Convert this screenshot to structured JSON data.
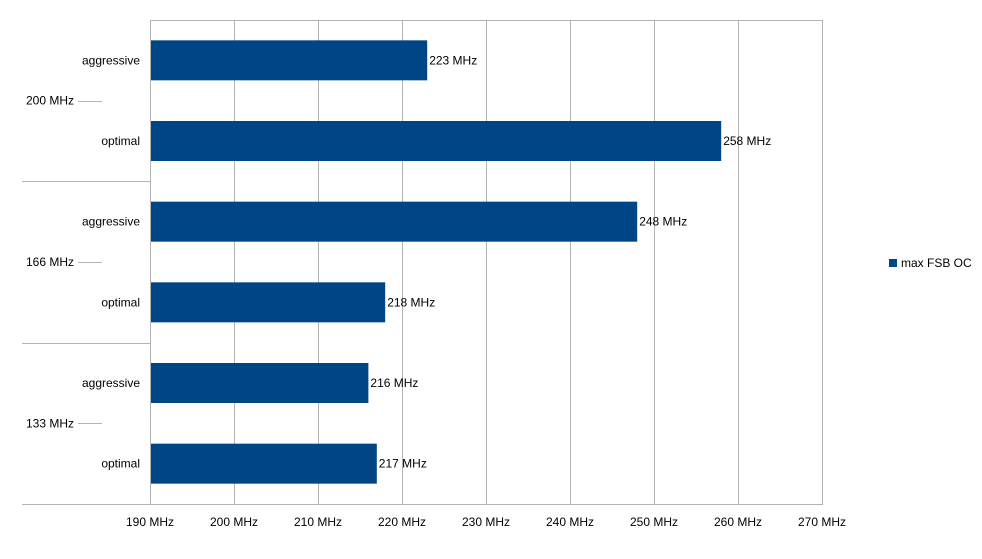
{
  "chart_data": {
    "type": "bar",
    "orientation": "horizontal",
    "groups": [
      {
        "label": "200 MHz",
        "items": [
          {
            "label": "aggressive",
            "value": 223,
            "value_label": "223 MHz"
          },
          {
            "label": "optimal",
            "value": 258,
            "value_label": "258 MHz"
          }
        ]
      },
      {
        "label": "166 MHz",
        "items": [
          {
            "label": "aggressive",
            "value": 248,
            "value_label": "248 MHz"
          },
          {
            "label": "optimal",
            "value": 218,
            "value_label": "218 MHz"
          }
        ]
      },
      {
        "label": "133 MHz",
        "items": [
          {
            "label": "aggressive",
            "value": 216,
            "value_label": "216 MHz"
          },
          {
            "label": "optimal",
            "value": 217,
            "value_label": "217 MHz"
          }
        ]
      }
    ],
    "xlim": [
      190,
      270
    ],
    "xticks": [
      190,
      200,
      210,
      220,
      230,
      240,
      250,
      260,
      270
    ],
    "xtick_labels": [
      "190 MHz",
      "200 MHz",
      "210 MHz",
      "220 MHz",
      "230 MHz",
      "240 MHz",
      "250 MHz",
      "260 MHz",
      "270 MHz"
    ],
    "series": [
      {
        "name": "max FSB OC",
        "color": "#004586"
      }
    ],
    "grid": true,
    "legend_position": "right"
  }
}
